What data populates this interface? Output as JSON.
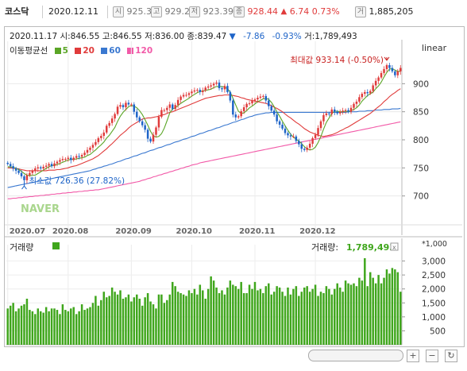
{
  "topbar": {
    "title": "코스닥",
    "date": "2020.12.11",
    "open_icon": "시",
    "open": "925.30",
    "high_icon": "고",
    "high": "929.23",
    "low_icon": "저",
    "low": "923.39",
    "close_icon": "종",
    "close": "928.44",
    "change_arrow": "▲",
    "change": "6.74",
    "change_pct": "0.73%",
    "volume_icon": "거",
    "volume": "1,885,205"
  },
  "info": {
    "date": "2020.11.17",
    "open_label": "시:",
    "open": "846.55",
    "high_label": "고:",
    "high": "846.55",
    "low_label": "저:",
    "low": "836.00",
    "close_label": "종:",
    "close": "839.47",
    "down_arrow": "▼",
    "change": "-7.86",
    "change_pct": "-0.93%",
    "volume_label": "거:",
    "volume": "1,789,493"
  },
  "legend": {
    "title": "이동평균선",
    "ma5": "5",
    "ma20": "20",
    "ma60": "60",
    "ma120": "120"
  },
  "scale_label": "linear",
  "watermark": "NAVER",
  "colors": {
    "up": "#e03b3b",
    "down": "#1e64c8",
    "ma5": "#5aa526",
    "ma20": "#e03b3b",
    "ma60": "#3a78d0",
    "ma120": "#f25aa8",
    "volume": "#3fa61c"
  },
  "volume_panel": {
    "title": "거래량",
    "value_label": "거래량:",
    "value": "1,789,493",
    "unit": "*1,000"
  },
  "controls": {
    "zoom_in": "+",
    "zoom_out": "−",
    "reset": "↻"
  },
  "chart_data": [
    {
      "type": "candlestick",
      "x_tick_labels": [
        "2020.07",
        "2020.08",
        "2020.09",
        "2020.10",
        "2020.11",
        "2020.12"
      ],
      "y_ticks": [
        700,
        750,
        800,
        850,
        900
      ],
      "ylim": [
        650,
        950
      ],
      "annotations": {
        "max_label": "최대값 933.14 (-0.50%)",
        "max_value": 933.14,
        "min_label": "최소값 726.36 (27.82%)",
        "min_value": 726.36
      },
      "close": [
        757,
        753,
        749,
        745,
        741,
        735,
        728,
        737,
        741,
        745,
        749,
        751,
        749,
        752,
        754,
        757,
        753,
        758,
        761,
        764,
        766,
        766,
        768,
        764,
        768,
        771,
        770,
        773,
        777,
        782,
        786,
        791,
        796,
        803,
        807,
        813,
        825,
        830,
        838,
        846,
        859,
        862,
        858,
        866,
        863,
        863,
        850,
        840,
        833,
        826,
        818,
        802,
        797,
        809,
        822,
        841,
        853,
        853,
        857,
        863,
        855,
        862,
        871,
        877,
        880,
        880,
        883,
        886,
        888,
        889,
        885,
        888,
        893,
        895,
        897,
        900,
        902,
        892,
        890,
        896,
        885,
        870,
        845,
        840,
        842,
        851,
        858,
        864,
        865,
        870,
        872,
        875,
        877,
        878,
        870,
        860,
        852,
        845,
        833,
        827,
        820,
        812,
        808,
        806,
        806,
        798,
        792,
        784,
        782,
        786,
        793,
        803,
        809,
        821,
        833,
        844,
        847,
        846,
        854,
        850,
        847,
        850,
        852,
        853,
        850,
        857,
        864,
        868,
        876,
        882,
        885,
        883,
        887,
        897,
        905,
        911,
        919,
        926,
        933,
        928,
        922,
        915,
        922,
        928
      ],
      "ma5": [
        752,
        752,
        751,
        749,
        747,
        744,
        740,
        737,
        736,
        737,
        737,
        740,
        743,
        746,
        749,
        752,
        754,
        755,
        756,
        758,
        760,
        762,
        764,
        765,
        765,
        766,
        767,
        768,
        769,
        772,
        774,
        778,
        782,
        787,
        791,
        796,
        803,
        808,
        815,
        822,
        833,
        842,
        849,
        854,
        859,
        861,
        860,
        857,
        852,
        845,
        836,
        826,
        815,
        807,
        805,
        806,
        811,
        821,
        834,
        848,
        855,
        857,
        861,
        865,
        868,
        871,
        874,
        878,
        881,
        884,
        886,
        887,
        888,
        889,
        890,
        893,
        895,
        895,
        895,
        894,
        891,
        885,
        874,
        862,
        851,
        847,
        848,
        852,
        857,
        860,
        864,
        868,
        870,
        873,
        874,
        872,
        867,
        859,
        850,
        842,
        833,
        825,
        817,
        810,
        805,
        801,
        798,
        793,
        788,
        784,
        782,
        783,
        787,
        795,
        806,
        819,
        831,
        839,
        847,
        851,
        851,
        850,
        850,
        851,
        850,
        852,
        854,
        857,
        862,
        869,
        874,
        879,
        882,
        885,
        891,
        896,
        903,
        912,
        920,
        926,
        927,
        924,
        922,
        922
      ],
      "ma20": [
        750,
        750,
        749,
        749,
        748,
        747,
        746,
        745,
        745,
        745,
        745,
        745,
        745,
        745,
        745,
        746,
        746,
        746,
        747,
        747,
        748,
        749,
        750,
        752,
        753,
        754,
        756,
        758,
        760,
        762,
        764,
        766,
        769,
        772,
        776,
        780,
        784,
        789,
        793,
        798,
        803,
        808,
        812,
        816,
        821,
        825,
        828,
        831,
        834,
        837,
        838,
        839,
        839,
        840,
        841,
        842,
        844,
        845,
        847,
        849,
        850,
        852,
        854,
        856,
        858,
        860,
        862,
        864,
        866,
        868,
        870,
        872,
        874,
        875,
        876,
        877,
        878,
        879,
        879,
        880,
        880,
        880,
        879,
        878,
        877,
        875,
        874,
        872,
        871,
        870,
        869,
        868,
        867,
        866,
        865,
        863,
        861,
        858,
        856,
        853,
        850,
        846,
        842,
        839,
        835,
        831,
        828,
        824,
        820,
        817,
        814,
        812,
        810,
        808,
        807,
        806,
        807,
        808,
        809,
        811,
        813,
        816,
        818,
        821,
        823,
        826,
        829,
        832,
        835,
        838,
        841,
        844,
        847,
        851,
        855,
        859,
        863,
        868,
        872,
        877,
        881,
        884,
        888,
        891
      ],
      "ma60": [
        715,
        716,
        717,
        718,
        719,
        720,
        721,
        722,
        723,
        724,
        725,
        726,
        727,
        728,
        729,
        730,
        731,
        732,
        733,
        734,
        735,
        736,
        737,
        738,
        739,
        740,
        741,
        742,
        743,
        744,
        745,
        747,
        748,
        750,
        751,
        753,
        754,
        756,
        757,
        759,
        761,
        762,
        764,
        766,
        767,
        769,
        771,
        772,
        774,
        776,
        777,
        779,
        781,
        782,
        784,
        786,
        787,
        789,
        791,
        792,
        794,
        796,
        797,
        799,
        801,
        802,
        804,
        806,
        807,
        809,
        811,
        812,
        814,
        816,
        817,
        819,
        821,
        822,
        824,
        826,
        827,
        829,
        831,
        832,
        834,
        836,
        837,
        839,
        841,
        842,
        844,
        845,
        846,
        847,
        848,
        848,
        849,
        849,
        849,
        849,
        849,
        849,
        849,
        849,
        849,
        849,
        849,
        849,
        849,
        849,
        849,
        849,
        849,
        849,
        849,
        849,
        849,
        849,
        849,
        849,
        849,
        849,
        849,
        849,
        850,
        850,
        850,
        850,
        851,
        851,
        851,
        852,
        852,
        852,
        853,
        853,
        853,
        854,
        854,
        854,
        855,
        855,
        855,
        856
      ],
      "ma120": [
        695,
        695,
        696,
        696,
        697,
        697,
        698,
        698,
        699,
        699,
        700,
        700,
        701,
        701,
        702,
        702,
        703,
        703,
        704,
        704,
        705,
        705,
        706,
        706,
        707,
        707,
        708,
        708,
        709,
        709,
        710,
        710,
        711,
        711,
        712,
        713,
        714,
        715,
        716,
        717,
        718,
        719,
        720,
        721,
        722,
        723,
        724,
        725,
        726,
        728,
        729,
        731,
        732,
        734,
        735,
        737,
        738,
        740,
        741,
        743,
        744,
        746,
        747,
        749,
        750,
        752,
        753,
        755,
        756,
        757,
        759,
        760,
        761,
        762,
        763,
        764,
        765,
        766,
        767,
        768,
        769,
        770,
        771,
        772,
        773,
        774,
        775,
        776,
        777,
        778,
        779,
        780,
        781,
        782,
        783,
        784,
        785,
        786,
        787,
        788,
        789,
        790,
        791,
        792,
        793,
        794,
        795,
        796,
        797,
        798,
        799,
        800,
        801,
        802,
        803,
        804,
        805,
        806,
        807,
        808,
        809,
        810,
        811,
        812,
        813,
        814,
        815,
        816,
        817,
        818,
        819,
        820,
        821,
        822,
        823,
        824,
        825,
        826,
        827,
        828,
        829,
        830,
        831,
        832
      ],
      "volume_y_ticks": [
        500,
        1000,
        1500,
        2000,
        2500,
        3000
      ],
      "volume_ylim": [
        0,
        3300
      ],
      "volume": [
        1300,
        1400,
        1500,
        1200,
        1300,
        1400,
        1450,
        1650,
        1250,
        1200,
        1100,
        1300,
        1200,
        1150,
        1350,
        1200,
        1300,
        1300,
        1250,
        1100,
        1450,
        1250,
        1200,
        1300,
        1350,
        1100,
        1200,
        1450,
        1250,
        1300,
        1350,
        1500,
        1750,
        1400,
        1600,
        1900,
        1700,
        1750,
        2050,
        1900,
        1800,
        1950,
        1650,
        1700,
        1800,
        1550,
        1700,
        1800,
        1650,
        1400,
        1700,
        1850,
        1550,
        1450,
        1300,
        1800,
        1800,
        1500,
        1600,
        1800,
        2250,
        2100,
        1900,
        1850,
        1800,
        1750,
        1950,
        1850,
        2000,
        1800,
        2150,
        1950,
        1650,
        2000,
        2450,
        2300,
        2050,
        1850,
        1950,
        1800,
        2050,
        2300,
        2150,
        2100,
        2000,
        2250,
        1850,
        1850,
        2150,
        2000,
        2250,
        1950,
        2000,
        1850,
        2100,
        2200,
        1800,
        1900,
        2100,
        2050,
        1900,
        1750,
        2050,
        1800,
        2000,
        2100,
        1750,
        1900,
        2050,
        2100,
        1900,
        2000,
        2150,
        1750,
        1900,
        1850,
        2100,
        2000,
        1800,
        2000,
        2200,
        2050,
        1900,
        2300,
        2200,
        2150,
        2200,
        2100,
        2400,
        2300,
        3100,
        2100,
        2600,
        2400,
        2200,
        2500,
        2200,
        2400,
        2700,
        2550,
        2750,
        2700,
        2600,
        1900
      ]
    }
  ]
}
